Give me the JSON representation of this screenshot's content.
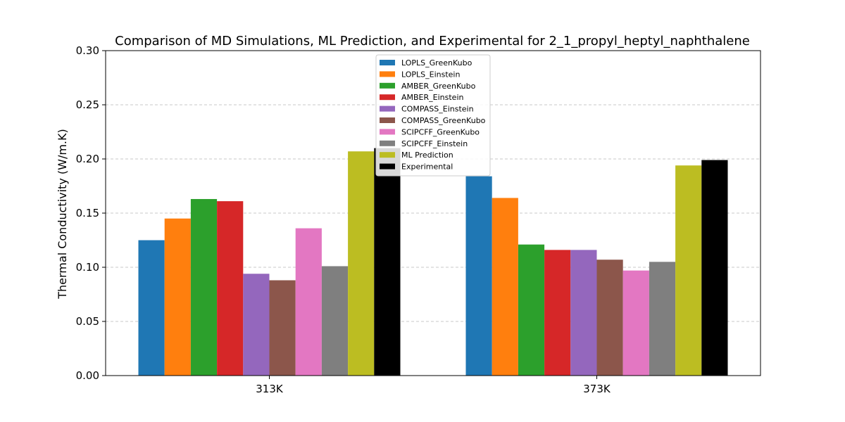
{
  "chart_data": {
    "type": "bar",
    "title": "Comparison of MD Simulations, ML Prediction, and Experimental for 2_1_propyl_heptyl_naphthalene",
    "xlabel": "",
    "ylabel": "Thermal Conductivity (W/m.K)",
    "ylim": [
      0,
      0.3
    ],
    "yticks": [
      "0.00",
      "0.05",
      "0.10",
      "0.15",
      "0.20",
      "0.25",
      "0.30"
    ],
    "grid": "y-dashed",
    "legend_position": "upper-center",
    "categories": [
      "313K",
      "373K"
    ],
    "series": [
      {
        "name": "LOPLS_GreenKubo",
        "color": "#1f77b4",
        "values": [
          0.125,
          0.184
        ]
      },
      {
        "name": "LOPLS_Einstein",
        "color": "#ff7f0e",
        "values": [
          0.145,
          0.164
        ]
      },
      {
        "name": "AMBER_GreenKubo",
        "color": "#2ca02c",
        "values": [
          0.163,
          0.121
        ]
      },
      {
        "name": "AMBER_Einstein",
        "color": "#d62728",
        "values": [
          0.161,
          0.116
        ]
      },
      {
        "name": "COMPASS_Einstein",
        "color": "#9467bd",
        "values": [
          0.094,
          0.116
        ]
      },
      {
        "name": "COMPASS_GreenKubo",
        "color": "#8c564b",
        "values": [
          0.088,
          0.107
        ]
      },
      {
        "name": "SCIPCFF_GreenKubo",
        "color": "#e377c2",
        "values": [
          0.136,
          0.097
        ]
      },
      {
        "name": "SCIPCFF_Einstein",
        "color": "#7f7f7f",
        "values": [
          0.101,
          0.105
        ]
      },
      {
        "name": "ML Prediction",
        "color": "#bcbd22",
        "values": [
          0.207,
          0.194
        ]
      },
      {
        "name": "Experimental",
        "color": "#000000",
        "values": [
          0.21,
          0.199
        ]
      }
    ]
  }
}
